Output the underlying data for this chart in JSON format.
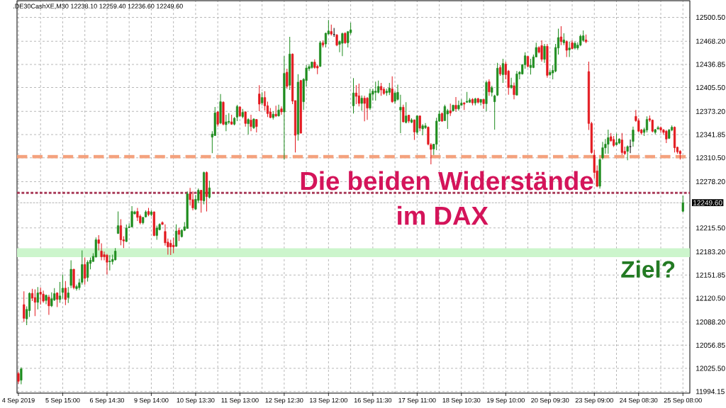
{
  "chart_data": {
    "type": "candlestick",
    "title": ".DE30CashXE,M30  12238.10 12259.40 12236.60 12249.60",
    "categories": [
      "4 Sep 2019",
      null,
      null,
      null,
      null,
      null,
      null,
      null,
      null,
      null,
      null,
      null,
      null,
      null,
      null,
      null,
      "5 Sep 15:00",
      null,
      null,
      null,
      null,
      null,
      null,
      null,
      null,
      null,
      null,
      null,
      null,
      null,
      null,
      null,
      "6 Sep 14:30",
      null,
      null,
      null,
      null,
      null,
      null,
      null,
      null,
      null,
      null,
      null,
      null,
      null,
      null,
      null,
      "9 Sep 14:00",
      null,
      null,
      null,
      null,
      null,
      null,
      null,
      null,
      null,
      null,
      null,
      null,
      null,
      null,
      null,
      "10 Sep 13:30",
      null,
      null,
      null,
      null,
      null,
      null,
      null,
      null,
      null,
      null,
      null,
      null,
      null,
      null,
      null,
      "11 Sep 13:00",
      null,
      null,
      null,
      null,
      null,
      null,
      null,
      null,
      null,
      null,
      null,
      null,
      null,
      null,
      null,
      "12 Sep 12:30",
      null,
      null,
      null,
      null,
      null,
      null,
      null,
      null,
      null,
      null,
      null,
      null,
      null,
      null,
      null,
      "13 Sep 12:00",
      null,
      null,
      null,
      null,
      null,
      null,
      null,
      null,
      null,
      null,
      null,
      null,
      null,
      null,
      null,
      "16 Sep 11:30",
      null,
      null,
      null,
      null,
      null,
      null,
      null,
      null,
      null,
      null,
      null,
      null,
      null,
      null,
      null,
      "17 Sep 11:00",
      null,
      null,
      null,
      null,
      null,
      null,
      null,
      null,
      null,
      null,
      null,
      null,
      null,
      null,
      null,
      "18 Sep 10:30",
      null,
      null,
      null,
      null,
      null,
      null,
      null,
      null,
      null,
      null,
      null,
      null,
      null,
      null,
      null,
      "19 Sep 10:00",
      null,
      null,
      null,
      null,
      null,
      null,
      null,
      null,
      null,
      null,
      null,
      null,
      null,
      null,
      null,
      "20 Sep 09:30",
      null,
      null,
      null,
      null,
      null,
      null,
      null,
      null,
      null,
      null,
      null,
      null,
      null,
      null,
      null,
      "23 Sep 09:00",
      null,
      null,
      null,
      null,
      null,
      null,
      null,
      null,
      null,
      null,
      null,
      null,
      null,
      null,
      null,
      "24 Sep 08:30",
      null,
      null,
      null,
      null,
      null,
      null,
      null,
      null,
      null,
      null,
      null,
      null,
      null,
      null,
      null,
      "25 Sep 08:00"
    ],
    "ohlc": [
      [
        12018.5,
        12020.7,
        12004.7,
        12008.0
      ],
      [
        12009.5,
        12027.0,
        12004.0,
        12024.8
      ],
      [
        12111.7,
        12129.9,
        12088.4,
        12093.2
      ],
      [
        12092.5,
        12109.4,
        12083.9,
        12105.3
      ],
      [
        12103.7,
        12128.3,
        12095.1,
        12127.0
      ],
      [
        12127.0,
        12133.1,
        12116.5,
        12120.6
      ],
      [
        12121.3,
        12132.4,
        12096.3,
        12114.9
      ],
      [
        12114.9,
        12135.6,
        12105.3,
        12127.6
      ],
      [
        12128.6,
        12135.0,
        12111.7,
        12126.0
      ],
      [
        12126.0,
        12130.8,
        12114.2,
        12116.5
      ],
      [
        12117.4,
        12125.4,
        12112.3,
        12124.4
      ],
      [
        12121.9,
        12125.1,
        12097.9,
        12110.1
      ],
      [
        12110.1,
        12128.3,
        12108.5,
        12119.7
      ],
      [
        12118.1,
        12134.0,
        12116.5,
        12126.7
      ],
      [
        12127.6,
        12128.3,
        12108.5,
        12119.0
      ],
      [
        12118.7,
        12142.6,
        12114.2,
        12123.5
      ],
      [
        12128.3,
        12152.5,
        12119.7,
        12134.0
      ],
      [
        12134.0,
        12143.6,
        12111.0,
        12118.7
      ],
      [
        12121.3,
        12135.6,
        12113.9,
        12127.6
      ],
      [
        12137.8,
        12171.7,
        12134.0,
        12159.6
      ],
      [
        12159.6,
        12160.2,
        12132.4,
        12134.7
      ],
      [
        12133.4,
        12138.8,
        12130.8,
        12136.2
      ],
      [
        12134.7,
        12146.8,
        12131.5,
        12141.4
      ],
      [
        12142.0,
        12185.1,
        12138.8,
        12166.0
      ],
      [
        12166.0,
        12175.5,
        12138.8,
        12147.4
      ],
      [
        12148.4,
        12171.7,
        12143.0,
        12169.1
      ],
      [
        12167.5,
        12175.5,
        12159.6,
        12171.7
      ],
      [
        12170.1,
        12181.3,
        12169.8,
        12177.1
      ],
      [
        12176.2,
        12202.7,
        12175.5,
        12199.5
      ],
      [
        12199.5,
        12205.8,
        12185.1,
        12194.7
      ],
      [
        12184.1,
        12194.7,
        12171.7,
        12176.5
      ],
      [
        12179.3,
        12183.5,
        12171.7,
        12176.5
      ],
      [
        12178.7,
        12180.3,
        12152.5,
        12169.1
      ],
      [
        12169.8,
        12178.7,
        12158.0,
        12170.7
      ],
      [
        12170.1,
        12179.3,
        12166.0,
        12173.0
      ],
      [
        12172.3,
        12188.3,
        12171.4,
        12184.1
      ],
      [
        12208.1,
        12237.8,
        12207.4,
        12218.6
      ],
      [
        12218.6,
        12227.2,
        12192.1,
        12199.5
      ],
      [
        12199.5,
        12204.2,
        12188.3,
        12197.9
      ],
      [
        12197.2,
        12220.2,
        12196.3,
        12215.4
      ],
      [
        12216.1,
        12221.8,
        12215.4,
        12217.0
      ],
      [
        12217.0,
        12245.1,
        12216.4,
        12237.8
      ],
      [
        12234.6,
        12238.8,
        12233.7,
        12237.2
      ],
      [
        12237.8,
        12242.6,
        12225.0,
        12229.8
      ],
      [
        12231.4,
        12233.7,
        12220.3,
        12222.5
      ],
      [
        12222.5,
        12230.5,
        12220.3,
        12229.8
      ],
      [
        12230.5,
        12239.4,
        12229.8,
        12237.2
      ],
      [
        12237.8,
        12242.6,
        12231.4,
        12233.7
      ],
      [
        12233.7,
        12239.4,
        12231.4,
        12237.2
      ],
      [
        12237.2,
        12237.8,
        12204.3,
        12205.3
      ],
      [
        12205.3,
        12218.7,
        12199.5,
        12215.5
      ],
      [
        12213.2,
        12221.9,
        12212.3,
        12220.3
      ],
      [
        12222.8,
        12224.4,
        12219.6,
        12220.3
      ],
      [
        12210.7,
        12220.3,
        12191.5,
        12195.4
      ],
      [
        12196.3,
        12201.1,
        12179.4,
        12189.9
      ],
      [
        12194.7,
        12199.5,
        12178.8,
        12189.9
      ],
      [
        12192.2,
        12202.7,
        12181.3,
        12189.9
      ],
      [
        12190.6,
        12220.3,
        12189.9,
        12211.3
      ],
      [
        12212.3,
        12215.5,
        12197.9,
        12206.8
      ],
      [
        12203.7,
        12213.9,
        12202.7,
        12212.3
      ],
      [
        12212.3,
        12223.5,
        12211.3,
        12217.1
      ],
      [
        12214.8,
        12264.9,
        12214.5,
        12261.7
      ],
      [
        12261.7,
        12269.7,
        12245.8,
        12253.8
      ],
      [
        12253.8,
        12264.9,
        12239.4,
        12242.6
      ],
      [
        12241.0,
        12260.2,
        12240.0,
        12254.4
      ],
      [
        12252.8,
        12269.1,
        12249.0,
        12266.5
      ],
      [
        12266.5,
        12267.2,
        12236.2,
        12252.8
      ],
      [
        12252.2,
        12291.8,
        12247.4,
        12290.5
      ],
      [
        12290.5,
        12292.1,
        12237.8,
        12257.9
      ],
      [
        12257.0,
        12279.3,
        12255.4,
        12269.7
      ],
      [
        12338.4,
        12346.4,
        12316.7,
        12342.5
      ],
      [
        12340.6,
        12379.2,
        12340.0,
        12371.2
      ],
      [
        12372.5,
        12373.5,
        12352.7,
        12355.9
      ],
      [
        12357.5,
        12396.8,
        12355.9,
        12386.3
      ],
      [
        12385.6,
        12386.9,
        12354.3,
        12355.9
      ],
      [
        12355.3,
        12368.7,
        12346.4,
        12359.1
      ],
      [
        12358.5,
        12370.9,
        12355.9,
        12359.8
      ],
      [
        12359.1,
        12368.7,
        12355.0,
        12355.9
      ],
      [
        12355.9,
        12365.5,
        12354.3,
        12363.9
      ],
      [
        12365.5,
        12382.1,
        12360.1,
        12379.9
      ],
      [
        12379.2,
        12380.5,
        12365.5,
        12367.1
      ],
      [
        12366.1,
        12376.7,
        12363.9,
        12371.9
      ],
      [
        12372.5,
        12373.5,
        12352.7,
        12356.9
      ],
      [
        12356.6,
        12363.9,
        12342.2,
        12362.3
      ],
      [
        12361.4,
        12368.7,
        12346.4,
        12352.7
      ],
      [
        12351.1,
        12363.9,
        12349.5,
        12362.9
      ],
      [
        12362.3,
        12363.0,
        12344.8,
        12352.7
      ],
      [
        12396.8,
        12408.6,
        12373.5,
        12383.1
      ],
      [
        12384.7,
        12399.0,
        12381.5,
        12392.0
      ],
      [
        12392.0,
        12400.6,
        12374.5,
        12380.8
      ],
      [
        12380.8,
        12386.3,
        12365.5,
        12370.3
      ],
      [
        12372.5,
        12377.7,
        12363.9,
        12364.9
      ],
      [
        12364.9,
        12373.5,
        12362.3,
        12369.4
      ],
      [
        12369.4,
        12380.8,
        12365.5,
        12367.1
      ],
      [
        12367.1,
        12382.4,
        12366.2,
        12375.1
      ],
      [
        12376.7,
        12379.9,
        12368.7,
        12372.5
      ],
      [
        12372.5,
        12447.9,
        12308.1,
        12424.6
      ],
      [
        12426.2,
        12431.0,
        12403.8,
        12407.0
      ],
      [
        12408.6,
        12474.1,
        12402.2,
        12450.8
      ],
      [
        12450.8,
        12451.7,
        12383.1,
        12387.2
      ],
      [
        12387.9,
        12387.9,
        12317.6,
        12340.9
      ],
      [
        12342.5,
        12423.6,
        12333.6,
        12412.8
      ],
      [
        12415.0,
        12416.0,
        12343.2,
        12343.8
      ],
      [
        12386.3,
        12418.2,
        12375.1,
        12416.6
      ],
      [
        12415.0,
        12435.8,
        12407.0,
        12431.9
      ],
      [
        12431.0,
        12437.3,
        12427.8,
        12433.8
      ],
      [
        12432.6,
        12440.5,
        12431.0,
        12439.9
      ],
      [
        12439.9,
        12443.7,
        12431.0,
        12432.6
      ],
      [
        12434.2,
        12436.4,
        12423.6,
        12431.9
      ],
      [
        12434.2,
        12468.3,
        12433.5,
        12466.1
      ],
      [
        12466.1,
        12469.3,
        12459.7,
        12462.9
      ],
      [
        12464.5,
        12479.8,
        12459.7,
        12478.9
      ],
      [
        12477.9,
        12497.0,
        12477.3,
        12482.0
      ],
      [
        12481.4,
        12490.7,
        12475.7,
        12477.9
      ],
      [
        12477.3,
        12486.2,
        12474.1,
        12477.3
      ],
      [
        12476.6,
        12477.9,
        12461.3,
        12462.9
      ],
      [
        12463.9,
        12469.3,
        12453.3,
        12467.7
      ],
      [
        12465.4,
        12479.8,
        12447.9,
        12478.5
      ],
      [
        12478.9,
        12480.4,
        12464.5,
        12466.1
      ],
      [
        12466.1,
        12482.0,
        12459.7,
        12481.1
      ],
      [
        12479.8,
        12493.2,
        12477.3,
        12483.6
      ],
      [
        12380.8,
        12418.2,
        12370.3,
        12398.1
      ],
      [
        12398.1,
        12408.6,
        12383.1,
        12393.6
      ],
      [
        12394.3,
        12410.9,
        12379.9,
        12384.0
      ],
      [
        12384.0,
        12394.9,
        12374.1,
        12391.1
      ],
      [
        12391.1,
        12394.3,
        12359.8,
        12384.0
      ],
      [
        12391.1,
        12392.7,
        12361.7,
        12377.7
      ],
      [
        12377.7,
        12403.8,
        12375.1,
        12397.4
      ],
      [
        12396.5,
        12403.8,
        12387.9,
        12400.6
      ],
      [
        12399.0,
        12413.4,
        12387.9,
        12400.6
      ],
      [
        12399.0,
        12415.0,
        12397.4,
        12407.0
      ],
      [
        12407.0,
        12411.8,
        12394.3,
        12402.2
      ],
      [
        12403.2,
        12405.4,
        12395.8,
        12397.4
      ],
      [
        12398.4,
        12403.8,
        12394.3,
        12400.6
      ],
      [
        12399.0,
        12411.8,
        12395.2,
        12404.8
      ],
      [
        12403.8,
        12420.7,
        12384.7,
        12386.3
      ],
      [
        12386.9,
        12400.6,
        12383.7,
        12398.1
      ],
      [
        12389.5,
        12409.3,
        12387.9,
        12399.0
      ],
      [
        12375.1,
        12395.8,
        12343.8,
        12378.9
      ],
      [
        12378.9,
        12382.4,
        12358.2,
        12359.1
      ],
      [
        12358.2,
        12385.6,
        12356.9,
        12367.1
      ],
      [
        12368.1,
        12368.7,
        12357.5,
        12360.1
      ],
      [
        12358.5,
        12363.9,
        12357.5,
        12361.7
      ],
      [
        12361.7,
        12362.3,
        12334.6,
        12345.4
      ],
      [
        12344.8,
        12367.8,
        12341.6,
        12367.1
      ],
      [
        12367.1,
        12367.8,
        12346.4,
        12350.5
      ],
      [
        12349.6,
        12355.9,
        12340.9,
        12353.7
      ],
      [
        12351.2,
        12357.5,
        12349.6,
        12353.7
      ],
      [
        12351.8,
        12352.8,
        12327.2,
        12328.8
      ],
      [
        12328.2,
        12330.4,
        12301.7,
        12321.8
      ],
      [
        12322.4,
        12329.4,
        12314.4,
        12328.8
      ],
      [
        12328.8,
        12364.6,
        12320.8,
        12360.1
      ],
      [
        12360.1,
        12374.1,
        12359.1,
        12369.7
      ],
      [
        12370.3,
        12371.9,
        12359.1,
        12360.1
      ],
      [
        12360.7,
        12382.4,
        12360.7,
        12379.9
      ],
      [
        12369.7,
        12376.7,
        12349.6,
        12374.1
      ],
      [
        12374.1,
        12383.7,
        12367.1,
        12371.0
      ],
      [
        12374.1,
        12382.4,
        12372.9,
        12381.5
      ],
      [
        12381.5,
        12392.7,
        12372.9,
        12376.7
      ],
      [
        12376.7,
        12387.9,
        12374.1,
        12381.5
      ],
      [
        12381.5,
        12389.5,
        12380.8,
        12384.4
      ],
      [
        12384.7,
        12385.6,
        12375.1,
        12383.1
      ],
      [
        12385.6,
        12399.7,
        12384.7,
        12386.9
      ],
      [
        12385.6,
        12391.1,
        12384.7,
        12388.8
      ],
      [
        12389.5,
        12391.1,
        12381.5,
        12384.7
      ],
      [
        12384.7,
        12391.7,
        12381.5,
        12390.1
      ],
      [
        12390.4,
        12391.7,
        12383.7,
        12385.6
      ],
      [
        12385.6,
        12390.1,
        12381.5,
        12389.5
      ],
      [
        12389.5,
        12390.1,
        12376.7,
        12383.7
      ],
      [
        12383.7,
        12415.0,
        12373.5,
        12412.4
      ],
      [
        12413.4,
        12416.6,
        12394.3,
        12399.7
      ],
      [
        12399.0,
        12408.0,
        12393.3,
        12405.4
      ],
      [
        12386.3,
        12395.8,
        12348.6,
        12394.2
      ],
      [
        12395.2,
        12438.9,
        12394.2,
        12431.6
      ],
      [
        12432.6,
        12435.7,
        12421.4,
        12423.9
      ],
      [
        12423.0,
        12444.4,
        12411.8,
        12438.0
      ],
      [
        12437.3,
        12440.5,
        12416.6,
        12423.0
      ],
      [
        12427.8,
        12429.4,
        12395.8,
        12405.4
      ],
      [
        12405.4,
        12418.8,
        12403.8,
        12408.6
      ],
      [
        12408.0,
        12412.4,
        12389.5,
        12395.8
      ],
      [
        12395.2,
        12427.8,
        12395.2,
        12423.9
      ],
      [
        12423.9,
        12427.8,
        12416.6,
        12426.2
      ],
      [
        12423.9,
        12437.3,
        12423.0,
        12436.4
      ],
      [
        12436.4,
        12453.3,
        12431.0,
        12448.5
      ],
      [
        12447.6,
        12448.5,
        12432.6,
        12434.2
      ],
      [
        12432.6,
        12444.4,
        12423.0,
        12435.7
      ],
      [
        12432.6,
        12450.1,
        12431.6,
        12446.9
      ],
      [
        12446.9,
        12466.1,
        12446.3,
        12459.7
      ],
      [
        12459.7,
        12461.3,
        12451.7,
        12453.3
      ],
      [
        12462.2,
        12469.3,
        12440.5,
        12443.7
      ],
      [
        12443.7,
        12464.5,
        12438.9,
        12461.3
      ],
      [
        12461.3,
        12464.5,
        12418.8,
        12422.0
      ],
      [
        12423.0,
        12429.4,
        12421.4,
        12426.2
      ],
      [
        12425.2,
        12435.7,
        12416.6,
        12428.7
      ],
      [
        12427.8,
        12464.5,
        12426.2,
        12459.7
      ],
      [
        12459.0,
        12485.2,
        12450.1,
        12473.1
      ],
      [
        12474.1,
        12488.4,
        12462.9,
        12467.7
      ],
      [
        12466.1,
        12478.8,
        12462.9,
        12469.9
      ],
      [
        12467.7,
        12469.3,
        12446.9,
        12455.9
      ],
      [
        12456.5,
        12467.7,
        12446.9,
        12459.0
      ],
      [
        12466.1,
        12469.3,
        12457.1,
        12458.1
      ],
      [
        12459.0,
        12467.7,
        12457.1,
        12465.4
      ],
      [
        12459.0,
        12466.7,
        12456.5,
        12462.9
      ],
      [
        12462.9,
        12477.2,
        12461.3,
        12475.0
      ],
      [
        12469.3,
        12482.7,
        12467.7,
        12475.6
      ],
      [
        12469.9,
        12477.2,
        12465.4,
        12467.7
      ],
      [
        12427.1,
        12440.5,
        12348.0,
        12356.9
      ],
      [
        12356.9,
        12359.1,
        12316.0,
        12317.6
      ],
      [
        12314.0,
        12320.8,
        12282.5,
        12290.5
      ],
      [
        12292.7,
        12300.1,
        12270.7,
        12272.0
      ],
      [
        12272.0,
        12309.7,
        12268.8,
        12308.1
      ],
      [
        12310.3,
        12332.0,
        12308.1,
        12324.0
      ],
      [
        12324.0,
        12335.8,
        12316.0,
        12328.8
      ],
      [
        12328.8,
        12348.6,
        12316.0,
        12337.7
      ],
      [
        12339.0,
        12344.1,
        12332.0,
        12333.6
      ],
      [
        12335.2,
        12340.0,
        12325.0,
        12327.2
      ],
      [
        12328.2,
        12343.2,
        12327.2,
        12331.0
      ],
      [
        12330.4,
        12336.8,
        12328.8,
        12335.8
      ],
      [
        12334.6,
        12344.1,
        12314.4,
        12317.6
      ],
      [
        12319.2,
        12325.6,
        12314.4,
        12316.0
      ],
      [
        12319.2,
        12327.2,
        12307.1,
        12325.6
      ],
      [
        12325.6,
        12335.2,
        12316.7,
        12325.6
      ],
      [
        12332.6,
        12352.7,
        12325.6,
        12348.0
      ],
      [
        12366.5,
        12375.1,
        12359.1,
        12360.7
      ],
      [
        12360.7,
        12363.9,
        12345.4,
        12346.4
      ],
      [
        12348.0,
        12349.6,
        12341.6,
        12344.1
      ],
      [
        12344.8,
        12351.2,
        12340.0,
        12348.6
      ],
      [
        12348.0,
        12366.5,
        12344.8,
        12362.3
      ],
      [
        12363.3,
        12367.8,
        12359.1,
        12361.4
      ],
      [
        12361.4,
        12362.3,
        12344.8,
        12346.4
      ],
      [
        12344.8,
        12349.6,
        12342.2,
        12348.6
      ],
      [
        12349.6,
        12353.7,
        12348.0,
        12351.2
      ],
      [
        12351.2,
        12352.8,
        12344.8,
        12348.0
      ],
      [
        12348.0,
        12349.6,
        12341.6,
        12344.8
      ],
      [
        12346.4,
        12348.0,
        12330.4,
        12335.8
      ],
      [
        12336.8,
        12349.6,
        12335.8,
        12348.0
      ],
      [
        12348.0,
        12354.3,
        12346.4,
        12351.8
      ],
      [
        12351.8,
        12352.8,
        12317.6,
        12324.0
      ],
      [
        12324.7,
        12325.6,
        12316.0,
        12318.6
      ],
      [
        12319.2,
        12320.8,
        12308.1,
        12316.0
      ],
      [
        12238.1,
        12259.4,
        12236.6,
        12249.6
      ]
    ],
    "colors": [
      "#e3171d",
      "#1e8c1e",
      "#e3171d",
      "#1e8c1e",
      "#1e8c1e",
      "#e3171d",
      "#e3171d",
      "#1e8c1e",
      "#e3171d",
      "#e3171d",
      "#1e8c1e",
      "#e3171d",
      "#1e8c1e",
      "#1e8c1e",
      "#e3171d",
      "#1e8c1e",
      "#1e8c1e",
      "#e3171d",
      "#1e8c1e",
      "#1e8c1e",
      "#e3171d",
      "#1e8c1e",
      "#1e8c1e",
      "#1e8c1e",
      "#e3171d",
      "#1e8c1e",
      "#1e8c1e",
      "#1e8c1e",
      "#1e8c1e",
      "#e3171d",
      "#e3171d",
      "#e3171d",
      "#e3171d",
      "#1e8c1e",
      "#1e8c1e",
      "#1e8c1e",
      "#1e8c1e",
      "#e3171d",
      "#e3171d",
      "#1e8c1e",
      "#1e8c1e",
      "#1e8c1e",
      "#1e8c1e",
      "#e3171d",
      "#e3171d",
      "#1e8c1e",
      "#1e8c1e",
      "#e3171d",
      "#1e8c1e",
      "#e3171d",
      "#1e8c1e",
      "#1e8c1e",
      "#e3171d",
      "#e3171d",
      "#e3171d",
      "#e3171d",
      "#e3171d",
      "#1e8c1e",
      "#e3171d",
      "#1e8c1e",
      "#1e8c1e",
      "#1e8c1e",
      "#e3171d",
      "#e3171d",
      "#1e8c1e",
      "#1e8c1e",
      "#e3171d",
      "#1e8c1e",
      "#e3171d",
      "#1e8c1e",
      "#1e8c1e",
      "#1e8c1e",
      "#e3171d",
      "#1e8c1e",
      "#e3171d",
      "#1e8c1e",
      "#1e8c1e",
      "#e3171d",
      "#1e8c1e",
      "#1e8c1e",
      "#e3171d",
      "#1e8c1e",
      "#e3171d",
      "#1e8c1e",
      "#e3171d",
      "#1e8c1e",
      "#e3171d",
      "#e3171d",
      "#1e8c1e",
      "#e3171d",
      "#e3171d",
      "#e3171d",
      "#1e8c1e",
      "#e3171d",
      "#1e8c1e",
      "#e3171d",
      "#1e8c1e",
      "#e3171d",
      "#1e8c1e",
      "#e3171d",
      "#e3171d",
      "#1e8c1e",
      "#e3171d",
      "#1e8c1e",
      "#1e8c1e",
      "#1e8c1e",
      "#1e8c1e",
      "#e3171d",
      "#e3171d",
      "#1e8c1e",
      "#e3171d",
      "#1e8c1e",
      "#1e8c1e",
      "#e3171d",
      "#000000",
      "#e3171d",
      "#1e8c1e",
      "#1e8c1e",
      "#e3171d",
      "#1e8c1e",
      "#1e8c1e",
      "#1e8c1e",
      "#e3171d",
      "#e3171d",
      "#1e8c1e",
      "#e3171d",
      "#e3171d",
      "#1e8c1e",
      "#1e8c1e",
      "#1e8c1e",
      "#1e8c1e",
      "#e3171d",
      "#e3171d",
      "#1e8c1e",
      "#1e8c1e",
      "#e3171d",
      "#1e8c1e",
      "#1e8c1e",
      "#1e8c1e",
      "#e3171d",
      "#1e8c1e",
      "#e3171d",
      "#1e8c1e",
      "#e3171d",
      "#1e8c1e",
      "#e3171d",
      "#1e8c1e",
      "#1e8c1e",
      "#e3171d",
      "#e3171d",
      "#1e8c1e",
      "#1e8c1e",
      "#1e8c1e",
      "#e3171d",
      "#1e8c1e",
      "#1e8c1e",
      "#e3171d",
      "#1e8c1e",
      "#e3171d",
      "#1e8c1e",
      "#1e8c1e",
      "#e3171d",
      "#1e8c1e",
      "#1e8c1e",
      "#e3171d",
      "#1e8c1e",
      "#e3171d",
      "#1e8c1e",
      "#e3171d",
      "#1e8c1e",
      "#e3171d",
      "#1e8c1e",
      "#1e8c1e",
      "#1e8c1e",
      "#e3171d",
      "#1e8c1e",
      "#e3171d",
      "#e3171d",
      "#1e8c1e",
      "#e3171d",
      "#1e8c1e",
      "#1e8c1e",
      "#1e8c1e",
      "#1e8c1e",
      "#e3171d",
      "#1e8c1e",
      "#1e8c1e",
      "#1e8c1e",
      "#e3171d",
      "#e3171d",
      "#1e8c1e",
      "#e3171d",
      "#1e8c1e",
      "#1e8c1e",
      "#1e8c1e",
      "#1e8c1e",
      "#e3171d",
      "#1e8c1e",
      "#e3171d",
      "#1e8c1e",
      "#e3171d",
      "#1e8c1e",
      "#1e8c1e",
      "#1e8c1e",
      "#1e8c1e",
      "#e3171d",
      "#e3171d",
      "#e3171d",
      "#e3171d",
      "#e3171d",
      "#1e8c1e",
      "#1e8c1e",
      "#1e8c1e",
      "#1e8c1e",
      "#e3171d",
      "#e3171d",
      "#1e8c1e",
      "#1e8c1e",
      "#e3171d",
      "#e3171d",
      "#1e8c1e",
      "#000000",
      "#1e8c1e",
      "#e3171d",
      "#e3171d",
      "#e3171d",
      "#1e8c1e",
      "#1e8c1e",
      "#e3171d",
      "#e3171d",
      "#1e8c1e",
      "#1e8c1e",
      "#e3171d",
      "#e3171d",
      "#e3171d",
      "#1e8c1e",
      "#1e8c1e",
      "#e3171d",
      "#e3171d",
      "#e3171d",
      "#1e8c1e"
    ],
    "ylim": [
      11992,
      12523
    ],
    "yticks": [
      {
        "value": 12500.5,
        "label": "12500.50"
      },
      {
        "value": 12468.2,
        "label": "12468.20"
      },
      {
        "value": 12436.85,
        "label": "12436.85"
      },
      {
        "value": 12405.5,
        "label": "12405.50"
      },
      {
        "value": 12373.2,
        "label": "12373.20"
      },
      {
        "value": 12341.85,
        "label": "12341.85"
      },
      {
        "value": 12310.5,
        "label": "12310.50"
      },
      {
        "value": 12278.2,
        "label": "12278.20"
      },
      {
        "value": 12215.5,
        "label": "12215.50"
      },
      {
        "value": 12183.2,
        "label": "12183.20"
      },
      {
        "value": 12151.85,
        "label": "12151.85"
      },
      {
        "value": 12120.5,
        "label": "12120.50"
      },
      {
        "value": 12088.2,
        "label": "12088.20"
      },
      {
        "value": 12056.85,
        "label": "12056.85"
      },
      {
        "value": 12025.5,
        "label": "12025.50"
      },
      {
        "value": 11994.15,
        "label": "11994.15"
      }
    ],
    "grid": true,
    "bands": [
      {
        "axis": "y",
        "from": 12176,
        "to": 12188,
        "color": "#ccf5cc"
      }
    ],
    "ref_lines": [
      {
        "axis": "y",
        "value": 12312,
        "color": "#f4a27e",
        "line_style": "dashed"
      },
      {
        "axis": "y",
        "value": 12263,
        "color": "#a83a58",
        "line_style": "dotted"
      },
      {
        "axis": "y",
        "value": 12249.6,
        "label": "12249.60",
        "color": "#b4b4b4",
        "line_style": "dashed"
      }
    ],
    "annotations": [
      "Die beiden Widerstände",
      "im DAX",
      "Ziel?"
    ]
  }
}
